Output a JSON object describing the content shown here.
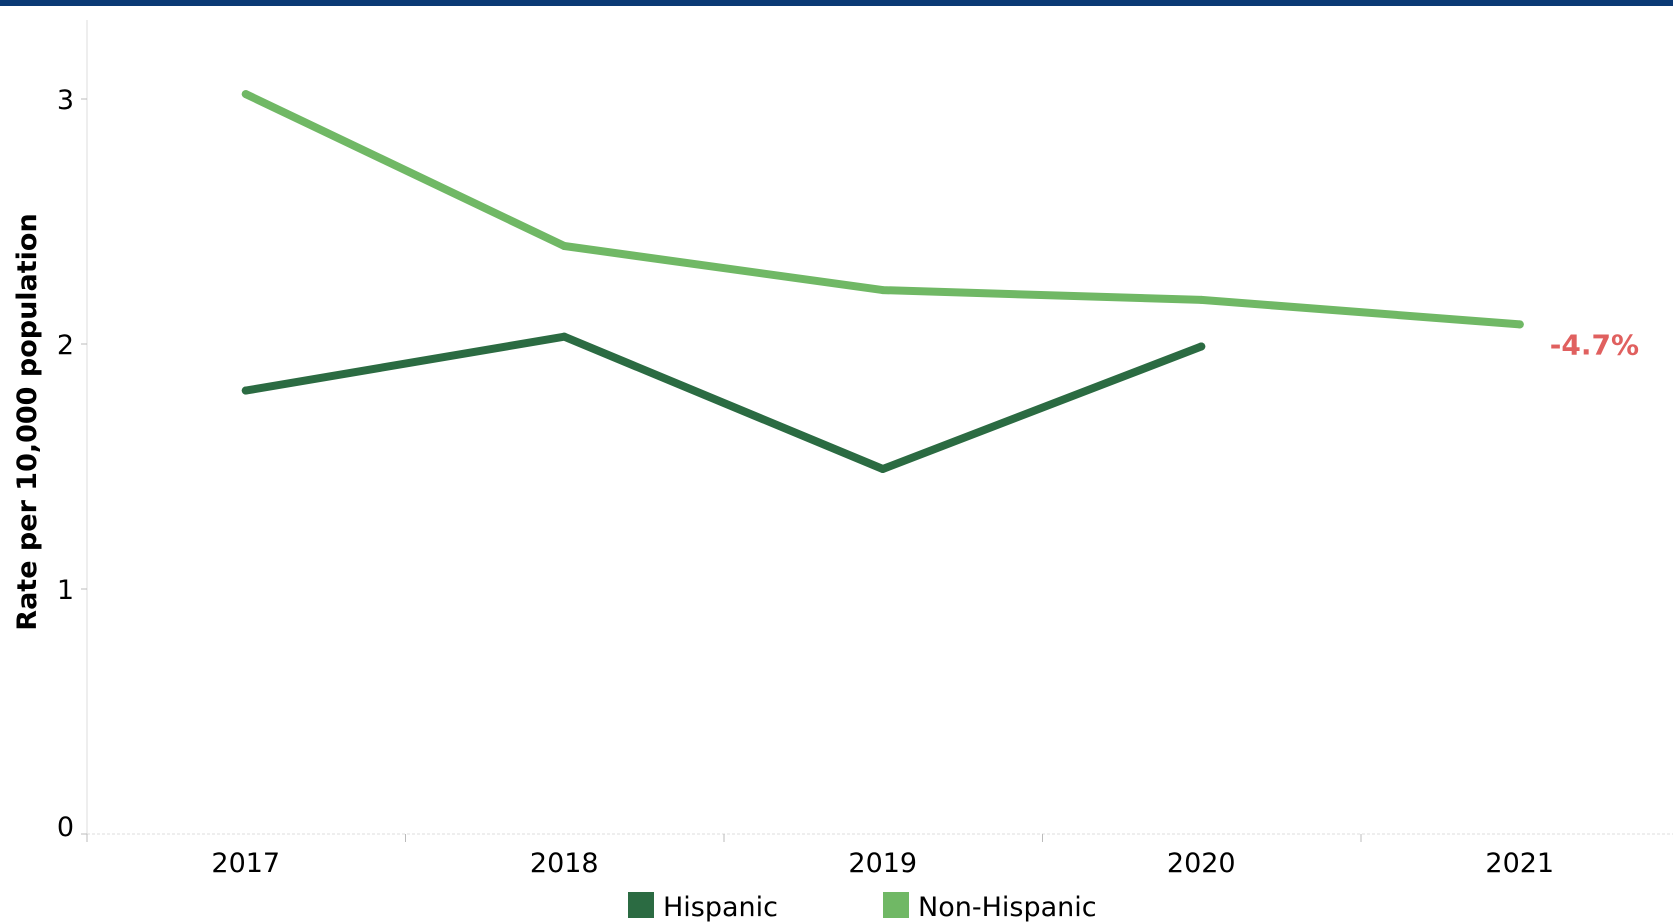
{
  "colors": {
    "top_bar": "#0b3a75",
    "hispanic": "#2b6b42",
    "non_hispanic": "#70b865",
    "annotation": "#e0605f",
    "axis": "#dddddd"
  },
  "chart_data": {
    "type": "line",
    "x": [
      "2017",
      "2018",
      "2019",
      "2020",
      "2021"
    ],
    "ylabel": "Rate per 10,000 population",
    "xlabel": "",
    "ylim": [
      0,
      3.2
    ],
    "yticks": [
      "0",
      "1",
      "2",
      "3"
    ],
    "grid": false,
    "legend_position": "bottom",
    "series": [
      {
        "name": "Hispanic",
        "color": "#2b6b42",
        "values": [
          1.81,
          2.03,
          1.49,
          1.99,
          null
        ]
      },
      {
        "name": "Non-Hispanic",
        "color": "#70b865",
        "values": [
          3.02,
          2.4,
          2.22,
          2.18,
          2.08
        ]
      }
    ],
    "annotations": [
      {
        "text": "-4.7%",
        "series": "Non-Hispanic",
        "x": "2021"
      }
    ]
  }
}
